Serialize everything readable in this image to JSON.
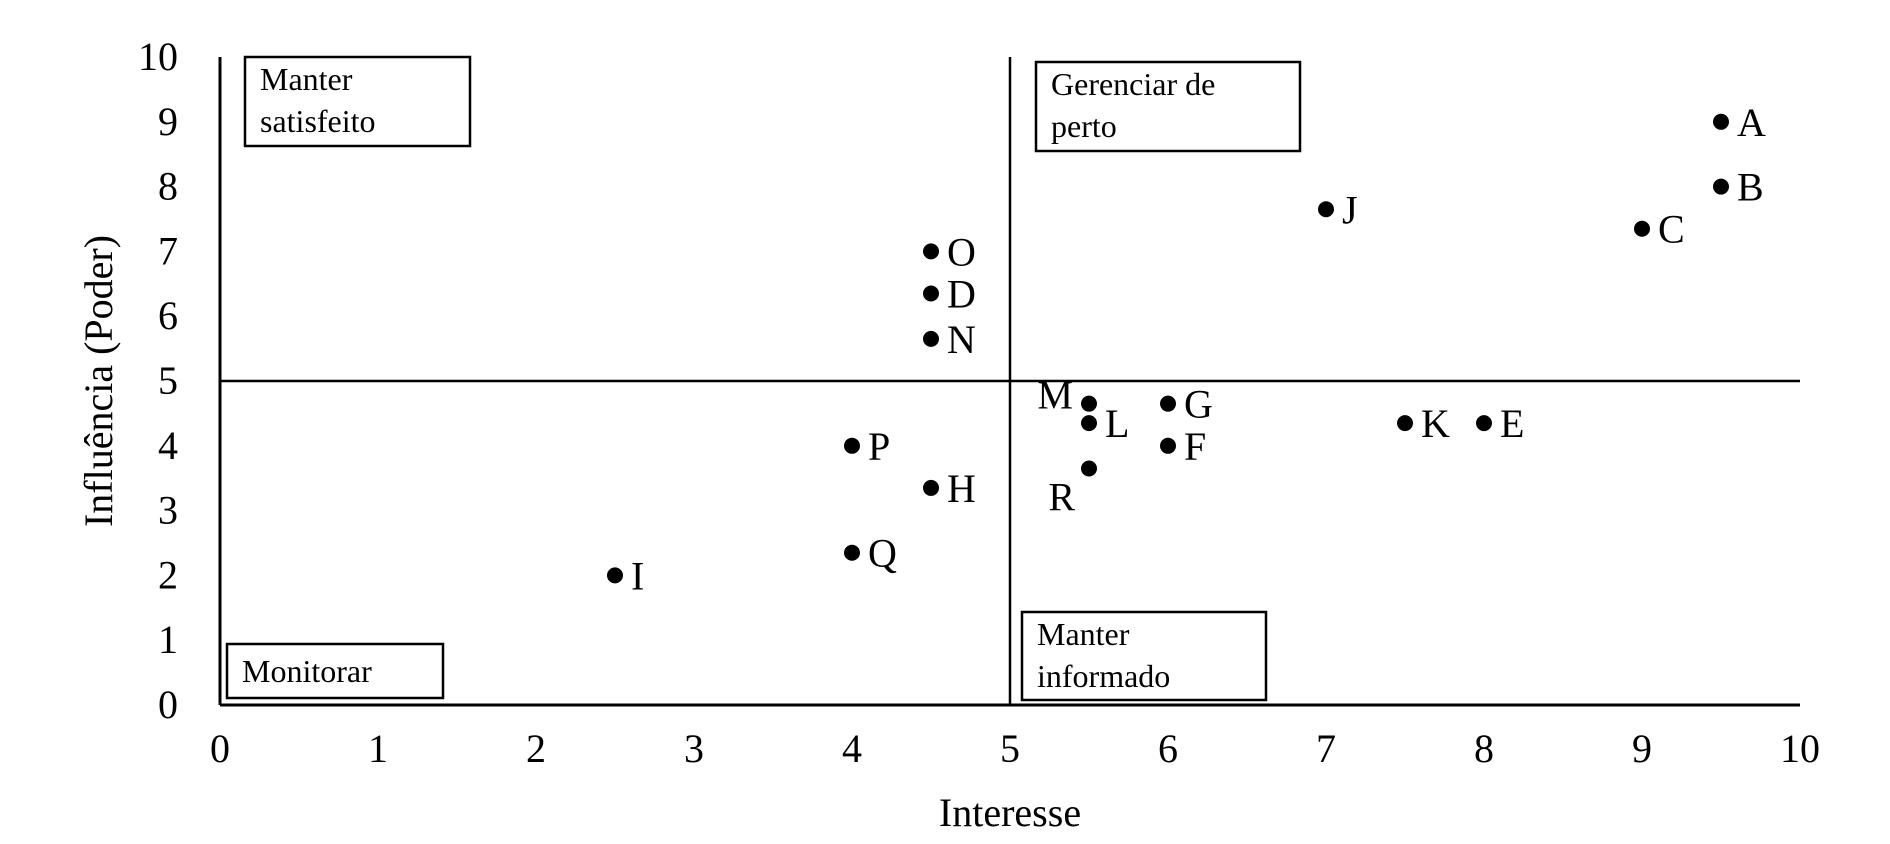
{
  "chart_data": {
    "type": "scatter",
    "xlabel": "Interesse",
    "ylabel": "Influência (Poder)",
    "xlim": [
      0,
      10
    ],
    "ylim": [
      0,
      10
    ],
    "xticks": [
      "0",
      "1",
      "2",
      "3",
      "4",
      "5",
      "6",
      "7",
      "8",
      "9",
      "10"
    ],
    "yticks": [
      "0",
      "1",
      "2",
      "3",
      "4",
      "5",
      "6",
      "7",
      "8",
      "9",
      "10"
    ],
    "grid": false,
    "divider": {
      "x": 5,
      "y": 5
    },
    "quadrants": [
      {
        "id": "top-left",
        "lines": [
          "Manter",
          "satisfeito"
        ]
      },
      {
        "id": "top-right",
        "lines": [
          "Gerenciar de",
          "perto"
        ]
      },
      {
        "id": "bottom-left",
        "lines": [
          "Monitorar"
        ]
      },
      {
        "id": "bottom-right",
        "lines": [
          "Manter",
          "informado"
        ]
      }
    ],
    "points": [
      {
        "label": "A",
        "x": 9.5,
        "y": 9.0,
        "side": "right"
      },
      {
        "label": "B",
        "x": 9.5,
        "y": 8.0,
        "side": "right"
      },
      {
        "label": "C",
        "x": 9.0,
        "y": 7.35,
        "side": "right"
      },
      {
        "label": "J",
        "x": 7.0,
        "y": 7.65,
        "side": "right"
      },
      {
        "label": "O",
        "x": 4.5,
        "y": 7.0,
        "side": "right"
      },
      {
        "label": "D",
        "x": 4.5,
        "y": 6.35,
        "side": "right"
      },
      {
        "label": "N",
        "x": 4.5,
        "y": 5.65,
        "side": "right"
      },
      {
        "label": "M",
        "x": 5.5,
        "y": 4.65,
        "side": "left"
      },
      {
        "label": "L",
        "x": 5.5,
        "y": 4.35,
        "side": "right"
      },
      {
        "label": "R",
        "x": 5.5,
        "y": 3.65,
        "side": "below-left"
      },
      {
        "label": "G",
        "x": 6.0,
        "y": 4.65,
        "side": "right"
      },
      {
        "label": "F",
        "x": 6.0,
        "y": 4.0,
        "side": "right"
      },
      {
        "label": "K",
        "x": 7.5,
        "y": 4.35,
        "side": "right"
      },
      {
        "label": "E",
        "x": 8.0,
        "y": 4.35,
        "side": "right"
      },
      {
        "label": "P",
        "x": 4.0,
        "y": 4.0,
        "side": "right"
      },
      {
        "label": "H",
        "x": 4.5,
        "y": 3.35,
        "side": "right"
      },
      {
        "label": "Q",
        "x": 4.0,
        "y": 2.35,
        "side": "right"
      },
      {
        "label": "I",
        "x": 2.5,
        "y": 2.0,
        "side": "right"
      }
    ]
  }
}
